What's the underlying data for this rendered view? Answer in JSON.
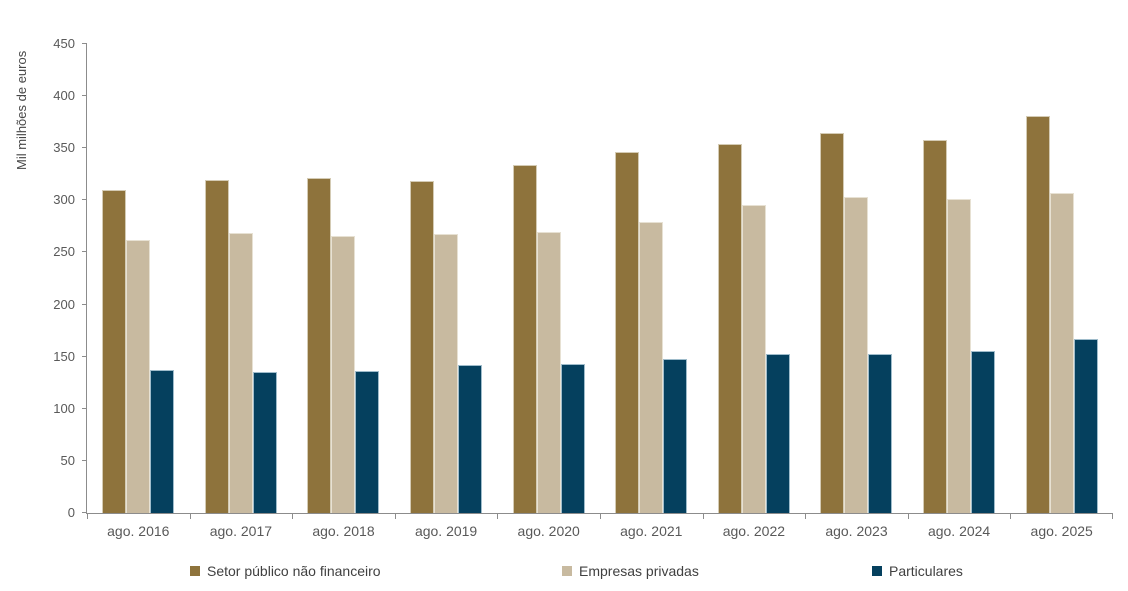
{
  "chart_data": {
    "type": "bar",
    "title": "",
    "xlabel": "",
    "ylabel": "Mil milhões de euros",
    "ylim": [
      0,
      450
    ],
    "yticks": [
      0,
      50,
      100,
      150,
      200,
      250,
      300,
      350,
      400,
      450
    ],
    "grid": false,
    "legend_position": "bottom",
    "categories": [
      "ago. 2016",
      "ago. 2017",
      "ago. 2018",
      "ago. 2019",
      "ago. 2020",
      "ago. 2021",
      "ago. 2022",
      "ago. 2023",
      "ago. 2024",
      "ago. 2025"
    ],
    "series": [
      {
        "name": "Setor público não financeiro",
        "color": "#8E733C",
        "border_color": "#D4CBB4",
        "values": [
          310,
          320,
          321,
          319,
          334,
          346,
          354,
          365,
          358,
          381
        ]
      },
      {
        "name": "Empresas privadas",
        "color": "#C8BAA0",
        "border_color": "#E7E1D3",
        "values": [
          262,
          269,
          266,
          268,
          270,
          279,
          296,
          303,
          301,
          307
        ]
      },
      {
        "name": "Particulares",
        "color": "#05405E",
        "border_color": "#9FBCCB",
        "values": [
          137,
          135,
          136,
          142,
          143,
          148,
          153,
          153,
          155,
          167
        ]
      }
    ]
  },
  "colors": {
    "axis_line": "#8C8C8C",
    "tick_label": "#595959",
    "legend_text": "#404040"
  }
}
